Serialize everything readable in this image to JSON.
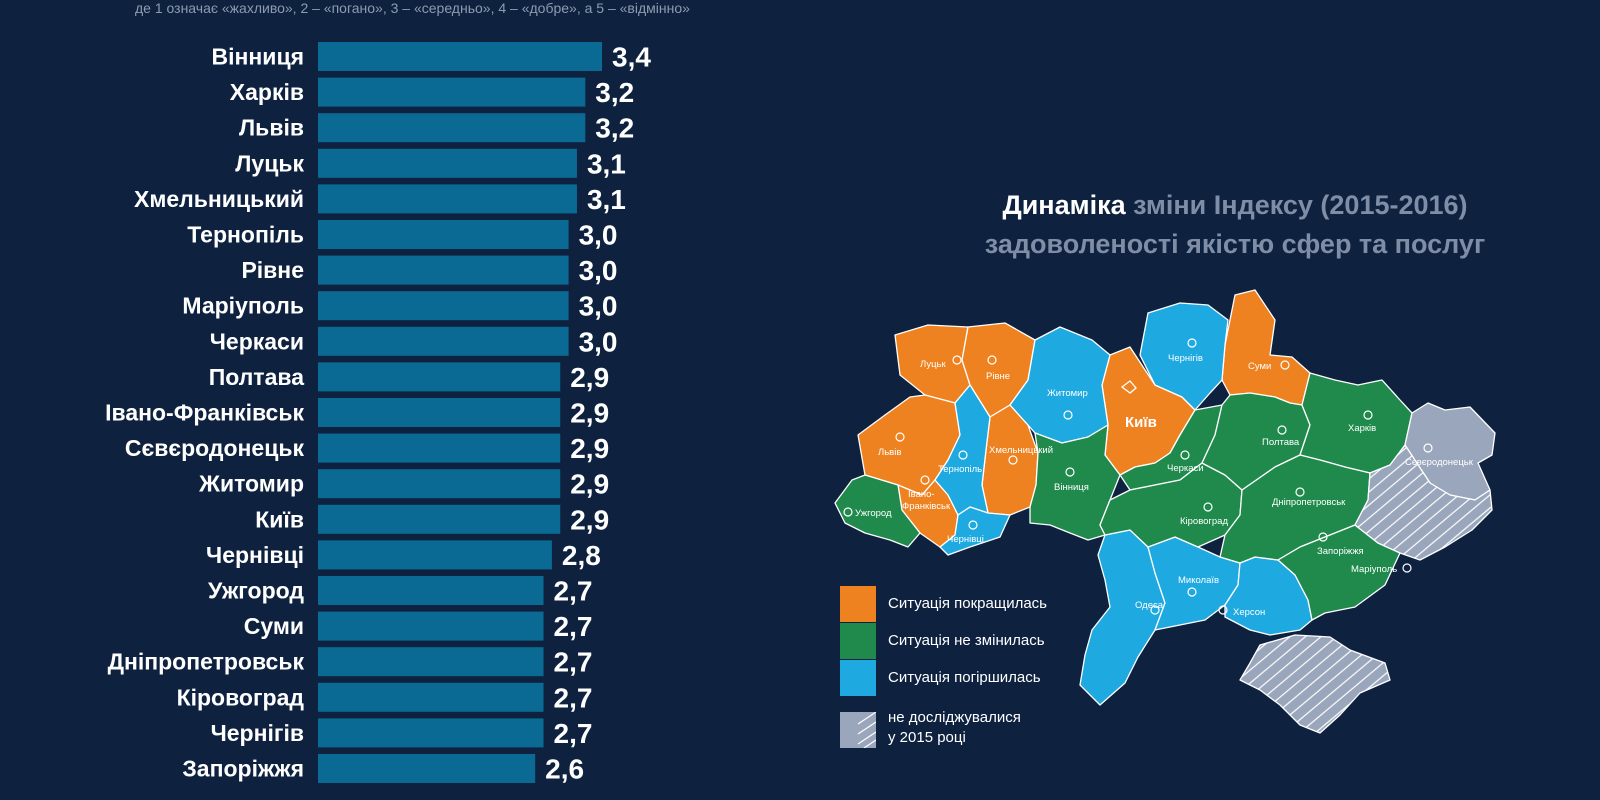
{
  "subtitle": "де 1 означає «жахливо», 2 – «погано», 3 – «середньо», 4 – «добре», а 5 – «відмінно»",
  "colors": {
    "background": "#0e2240",
    "bar": "#0b6a94",
    "improved": "#ef8220",
    "unchanged": "#1f8a4c",
    "worsened": "#1ea9e1",
    "not_studied": "#9aa6bc"
  },
  "chart_data": {
    "type": "bar",
    "orientation": "horizontal",
    "categories": [
      "Вінниця",
      "Харків",
      "Львів",
      "Луцьк",
      "Хмельницький",
      "Тернопіль",
      "Рівне",
      "Маріуполь",
      "Черкаси",
      "Полтава",
      "Івано-Франківськ",
      "Сєвєродонецьк",
      "Житомир",
      "Київ",
      "Чернівці",
      "Ужгород",
      "Суми",
      "Дніпропетровськ",
      "Кіровоград",
      "Чернігів",
      "Запоріжжя"
    ],
    "values": [
      3.4,
      3.2,
      3.2,
      3.1,
      3.1,
      3.0,
      3.0,
      3.0,
      3.0,
      2.9,
      2.9,
      2.9,
      2.9,
      2.9,
      2.8,
      2.7,
      2.7,
      2.7,
      2.7,
      2.7,
      2.6
    ],
    "value_labels": [
      "3,4",
      "3,2",
      "3,2",
      "3,1",
      "3,1",
      "3,0",
      "3,0",
      "3,0",
      "3,0",
      "2,9",
      "2,9",
      "2,9",
      "2,9",
      "2,9",
      "2,8",
      "2,7",
      "2,7",
      "2,7",
      "2,7",
      "2,7",
      "2,6"
    ],
    "xlim": [
      0,
      3.4
    ],
    "grid": false,
    "legend": "none"
  },
  "map": {
    "title_part1": "Динаміка",
    "title_part2": "зміни Індексу (2015-2016)",
    "title_line2": "задоволеності якістю сфер та послуг",
    "capital_label": "Київ",
    "region_labels": {
      "lutsk": "Луцьк",
      "rivne": "Рівне",
      "zhytomyr": "Житомир",
      "chernihiv": "Чернігів",
      "sumy": "Суми",
      "lviv": "Львів",
      "ternopil": "Тернопіль",
      "khmelnytskyi": "Хмельницький",
      "vinnytsia": "Вінниця",
      "cherkasy": "Черкаси",
      "poltava": "Полтава",
      "kharkiv": "Харків",
      "sievierodonetsk": "Сєвєродонецьк",
      "ivano_frankivsk_1": "Івано-",
      "ivano_frankivsk_2": "Франківськ",
      "uzhhorod": "Ужгород",
      "chernivtsi": "Чернівці",
      "kirovohrad": "Кіровоград",
      "dnipropetrovsk": "Дніпропетровськ",
      "zaporizhzhia": "Запоріжжя",
      "mariupol": "Маріуполь",
      "mykolaiv": "Миколаїв",
      "odesa": "Одеса",
      "kherson": "Херсон"
    }
  },
  "legend": {
    "improved": "Ситуація покращилась",
    "unchanged": "Ситуація не змінилась",
    "worsened": "Ситуація погіршилась",
    "not_studied_1": "не досліджувалися",
    "not_studied_2": "у 2015 році"
  }
}
